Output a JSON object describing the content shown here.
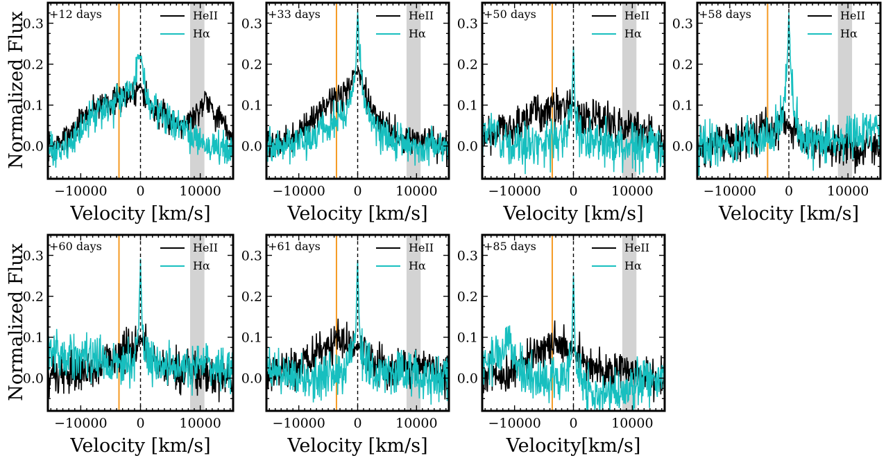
{
  "figure": {
    "ylabel": "Normalized Flux"
  },
  "colors": {
    "heii": "#000000",
    "halpha": "#17bfbf",
    "orange": "#f59a23",
    "band": "#d3d3d3"
  },
  "chart_data": [
    {
      "type": "line",
      "annotation": "+12 days",
      "xlabel": "Velocity [km/s]",
      "xlim": [
        -15500,
        15500
      ],
      "ylim": [
        -0.08,
        0.35
      ],
      "xticks": [
        -10000,
        0,
        10000
      ],
      "yticks": [
        0.0,
        0.1,
        0.2,
        0.3
      ],
      "xtick_labels": [
        "−10000",
        "0",
        "10000"
      ],
      "ytick_labels": [
        "0.0",
        "0.1",
        "0.2",
        "0.3"
      ],
      "vline_orange": -3600,
      "vline_dashed": 0,
      "shaded_band": [
        8300,
        10700
      ],
      "legend_loc": "upper-right",
      "series": [
        {
          "name": "HeII",
          "color": "#000000",
          "x": [
            -15500,
            -14000,
            -12000,
            -10000,
            -8000,
            -6000,
            -4000,
            -2000,
            -1000,
            0,
            1000,
            2000,
            4000,
            6000,
            8000,
            10000,
            11000,
            12000,
            14000,
            15500
          ],
          "y": [
            0.0,
            0.0,
            0.03,
            0.06,
            0.09,
            0.11,
            0.11,
            0.12,
            0.13,
            0.15,
            0.12,
            0.09,
            0.07,
            0.06,
            0.06,
            0.09,
            0.13,
            0.09,
            0.05,
            0.02
          ]
        },
        {
          "name": "Hα",
          "color": "#17bfbf",
          "x": [
            -15500,
            -14000,
            -12000,
            -10000,
            -8000,
            -6000,
            -4000,
            -2000,
            -1000,
            -300,
            0,
            300,
            1000,
            2000,
            4000,
            6000,
            8000,
            10000,
            12000,
            14000,
            15500
          ],
          "y": [
            -0.02,
            -0.01,
            0.0,
            0.04,
            0.07,
            0.09,
            0.1,
            0.13,
            0.15,
            0.22,
            0.23,
            0.2,
            0.13,
            0.09,
            0.08,
            0.05,
            0.03,
            0.01,
            0.0,
            0.0,
            -0.01
          ]
        }
      ]
    },
    {
      "type": "line",
      "annotation": "+33 days",
      "xlabel": "Velocity [km/s]",
      "xlim": [
        -15500,
        15500
      ],
      "ylim": [
        -0.08,
        0.35
      ],
      "xticks": [
        -10000,
        0,
        10000
      ],
      "yticks": [
        0.0,
        0.1,
        0.2,
        0.3
      ],
      "xtick_labels": [
        "−10000",
        "0",
        "10000"
      ],
      "ytick_labels": [
        "0.0",
        "0.1",
        "0.2",
        "0.3"
      ],
      "vline_orange": -3600,
      "vline_dashed": 0,
      "shaded_band": [
        8300,
        10700
      ],
      "legend_loc": "upper-right",
      "series": [
        {
          "name": "HeII",
          "color": "#000000",
          "x": [
            -15500,
            -14000,
            -12000,
            -10000,
            -8000,
            -6000,
            -4000,
            -2000,
            -1000,
            0,
            1000,
            2000,
            4000,
            6000,
            8000,
            10000,
            12000,
            14000,
            15500
          ],
          "y": [
            0.0,
            0.0,
            0.01,
            0.03,
            0.06,
            0.09,
            0.12,
            0.13,
            0.15,
            0.19,
            0.14,
            0.1,
            0.06,
            0.03,
            0.02,
            0.01,
            0.01,
            0.0,
            0.0
          ]
        },
        {
          "name": "Hα",
          "color": "#17bfbf",
          "x": [
            -15500,
            -14000,
            -12000,
            -10000,
            -8000,
            -6000,
            -4000,
            -2000,
            -1000,
            -300,
            0,
            300,
            1000,
            2000,
            4000,
            6000,
            8000,
            10000,
            12000,
            14000,
            15500
          ],
          "y": [
            0.0,
            0.0,
            0.0,
            0.01,
            0.02,
            0.04,
            0.06,
            0.08,
            0.12,
            0.2,
            0.33,
            0.22,
            0.12,
            0.07,
            0.03,
            0.01,
            0.0,
            0.0,
            0.0,
            0.0,
            0.0
          ]
        }
      ]
    },
    {
      "type": "line",
      "annotation": "+50 days",
      "xlabel": "Velocity [km/s]",
      "xlim": [
        -15500,
        15500
      ],
      "ylim": [
        -0.08,
        0.35
      ],
      "xticks": [
        -10000,
        0,
        10000
      ],
      "yticks": [
        0.0,
        0.1,
        0.2,
        0.3
      ],
      "xtick_labels": [
        "−10000",
        "0",
        "10000"
      ],
      "ytick_labels": [
        "0.0",
        "0.1",
        "0.2",
        "0.3"
      ],
      "vline_orange": -3600,
      "vline_dashed": 0,
      "shaded_band": [
        8300,
        10700
      ],
      "legend_loc": "upper-right",
      "series": [
        {
          "name": "HeII",
          "color": "#000000",
          "x": [
            -15500,
            -14000,
            -12000,
            -10000,
            -8000,
            -6000,
            -4000,
            -2000,
            -1000,
            0,
            1000,
            2000,
            4000,
            6000,
            8000,
            10000,
            12000,
            14000,
            15500
          ],
          "y": [
            0.02,
            0.03,
            0.04,
            0.05,
            0.06,
            0.08,
            0.09,
            0.1,
            0.09,
            0.1,
            0.08,
            0.07,
            0.06,
            0.05,
            0.05,
            0.04,
            0.03,
            0.01,
            0.0
          ]
        },
        {
          "name": "Hα",
          "color": "#17bfbf",
          "x": [
            -15500,
            -14000,
            -12000,
            -10000,
            -8000,
            -6000,
            -4000,
            -2000,
            -1000,
            -300,
            0,
            300,
            1000,
            2000,
            4000,
            6000,
            8000,
            10000,
            12000,
            14000,
            15500
          ],
          "y": [
            0.03,
            0.04,
            0.02,
            0.01,
            0.0,
            0.0,
            0.01,
            0.02,
            0.04,
            0.08,
            0.25,
            0.08,
            0.04,
            0.02,
            0.01,
            0.0,
            0.0,
            0.0,
            0.0,
            0.01,
            0.0
          ]
        }
      ]
    },
    {
      "type": "line",
      "annotation": "+58 days",
      "xlabel": "Velocity [km/s]",
      "xlim": [
        -15500,
        15500
      ],
      "ylim": [
        -0.08,
        0.35
      ],
      "xticks": [
        -10000,
        0,
        10000
      ],
      "yticks": [
        0.0,
        0.1,
        0.2,
        0.3
      ],
      "xtick_labels": [
        "−10000",
        "0",
        "10000"
      ],
      "ytick_labels": [
        "0.0",
        "0.1",
        "0.2",
        "0.3"
      ],
      "vline_orange": -3600,
      "vline_dashed": 0,
      "shaded_band": [
        8300,
        10700
      ],
      "legend_loc": "upper-right",
      "series": [
        {
          "name": "HeII",
          "color": "#000000",
          "x": [
            -15500,
            -14000,
            -12000,
            -10000,
            -8000,
            -6000,
            -4000,
            -2000,
            -1000,
            0,
            1000,
            2000,
            4000,
            6000,
            8000,
            10000,
            12000,
            14000,
            15500
          ],
          "y": [
            0.0,
            0.0,
            0.0,
            0.01,
            0.02,
            0.03,
            0.04,
            0.05,
            0.06,
            0.05,
            0.03,
            0.02,
            0.01,
            0.01,
            0.0,
            0.0,
            -0.01,
            0.0,
            0.0
          ]
        },
        {
          "name": "Hα",
          "color": "#17bfbf",
          "x": [
            -15500,
            -14000,
            -12000,
            -10000,
            -8000,
            -6000,
            -4000,
            -2000,
            -1000,
            -300,
            0,
            300,
            1000,
            2000,
            4000,
            6000,
            8000,
            10000,
            12000,
            14000,
            15500
          ],
          "y": [
            0.0,
            0.0,
            0.0,
            0.0,
            0.01,
            0.02,
            0.02,
            0.04,
            0.08,
            0.2,
            0.32,
            0.2,
            0.06,
            0.02,
            0.01,
            0.01,
            0.02,
            0.02,
            0.03,
            0.04,
            0.05
          ]
        }
      ]
    },
    {
      "type": "line",
      "annotation": "+60 days",
      "xlabel": "Velocity [km/s]",
      "xlim": [
        -15500,
        15500
      ],
      "ylim": [
        -0.08,
        0.35
      ],
      "xticks": [
        -10000,
        0,
        10000
      ],
      "yticks": [
        0.0,
        0.1,
        0.2,
        0.3
      ],
      "xtick_labels": [
        "−10000",
        "0",
        "10000"
      ],
      "ytick_labels": [
        "0.0",
        "0.1",
        "0.2",
        "0.3"
      ],
      "vline_orange": -3600,
      "vline_dashed": 0,
      "shaded_band": [
        8300,
        10700
      ],
      "legend_loc": "upper-right",
      "series": [
        {
          "name": "HeII",
          "color": "#000000",
          "x": [
            -15500,
            -14000,
            -12000,
            -10000,
            -8000,
            -6000,
            -4000,
            -2000,
            -1000,
            0,
            1000,
            2000,
            4000,
            6000,
            8000,
            10000,
            12000,
            14000,
            15500
          ],
          "y": [
            0.0,
            0.0,
            0.01,
            0.01,
            0.02,
            0.04,
            0.06,
            0.07,
            0.08,
            0.09,
            0.07,
            0.05,
            0.03,
            0.02,
            0.02,
            0.02,
            0.01,
            0.0,
            0.0
          ]
        },
        {
          "name": "Hα",
          "color": "#17bfbf",
          "x": [
            -15500,
            -14000,
            -12000,
            -10000,
            -8000,
            -6000,
            -4000,
            -2000,
            -1000,
            -300,
            0,
            300,
            1000,
            2000,
            4000,
            6000,
            8000,
            10000,
            12000,
            14000,
            15500
          ],
          "y": [
            0.07,
            0.06,
            0.06,
            0.05,
            0.05,
            0.04,
            0.04,
            0.04,
            0.05,
            0.13,
            0.29,
            0.12,
            0.05,
            0.04,
            0.03,
            0.03,
            0.03,
            0.03,
            0.03,
            0.03,
            0.02
          ]
        }
      ]
    },
    {
      "type": "line",
      "annotation": "+61 days",
      "xlabel": "Velocity [km/s]",
      "xlim": [
        -15500,
        15500
      ],
      "ylim": [
        -0.08,
        0.35
      ],
      "xticks": [
        -10000,
        0,
        10000
      ],
      "yticks": [
        0.0,
        0.1,
        0.2,
        0.3
      ],
      "xtick_labels": [
        "−10000",
        "0",
        "10000"
      ],
      "ytick_labels": [
        "0.0",
        "0.1",
        "0.2",
        "0.3"
      ],
      "vline_orange": -3600,
      "vline_dashed": 0,
      "shaded_band": [
        8300,
        10700
      ],
      "legend_loc": "upper-right",
      "series": [
        {
          "name": "HeII",
          "color": "#000000",
          "x": [
            -15500,
            -14000,
            -12000,
            -10000,
            -8000,
            -6000,
            -4000,
            -2000,
            -1000,
            0,
            1000,
            2000,
            4000,
            6000,
            8000,
            10000,
            12000,
            14000,
            15500
          ],
          "y": [
            0.01,
            0.01,
            0.02,
            0.03,
            0.05,
            0.07,
            0.09,
            0.09,
            0.08,
            0.08,
            0.06,
            0.05,
            0.03,
            0.02,
            0.02,
            0.02,
            0.02,
            0.01,
            0.0
          ]
        },
        {
          "name": "Hα",
          "color": "#17bfbf",
          "x": [
            -15500,
            -14000,
            -12000,
            -10000,
            -8000,
            -6000,
            -4000,
            -2000,
            -1000,
            -300,
            0,
            300,
            1000,
            2000,
            4000,
            6000,
            8000,
            10000,
            12000,
            14000,
            15500
          ],
          "y": [
            0.02,
            0.01,
            0.01,
            0.0,
            0.0,
            0.0,
            0.01,
            0.02,
            0.05,
            0.13,
            0.29,
            0.12,
            0.04,
            0.02,
            0.01,
            0.01,
            0.01,
            0.01,
            0.0,
            0.0,
            0.01
          ]
        }
      ]
    },
    {
      "type": "line",
      "annotation": "+85 days",
      "xlabel": "Velocity[km/s]",
      "xlim": [
        -15500,
        15500
      ],
      "ylim": [
        -0.08,
        0.35
      ],
      "xticks": [
        -10000,
        0,
        10000
      ],
      "yticks": [
        0.0,
        0.1,
        0.2,
        0.3
      ],
      "xtick_labels": [
        "−10000",
        "0",
        "10000"
      ],
      "ytick_labels": [
        "0.0",
        "0.1",
        "0.2",
        "0.3"
      ],
      "vline_orange": -3600,
      "vline_dashed": 0,
      "shaded_band": [
        8300,
        10700
      ],
      "legend_loc": "upper-right",
      "series": [
        {
          "name": "HeII",
          "color": "#000000",
          "x": [
            -15500,
            -14000,
            -12000,
            -10000,
            -8000,
            -6000,
            -4000,
            -2000,
            -1000,
            0,
            1000,
            2000,
            4000,
            6000,
            8000,
            10000,
            12000,
            14000,
            15500
          ],
          "y": [
            0.01,
            0.01,
            0.01,
            0.02,
            0.04,
            0.06,
            0.08,
            0.09,
            0.08,
            0.07,
            0.05,
            0.04,
            0.03,
            0.02,
            0.02,
            0.02,
            0.01,
            0.0,
            0.0
          ]
        },
        {
          "name": "Hα",
          "color": "#17bfbf",
          "x": [
            -15500,
            -14000,
            -12000,
            -11000,
            -10000,
            -8000,
            -6000,
            -4000,
            -2000,
            -1000,
            -300,
            0,
            300,
            1000,
            2000,
            4000,
            6000,
            8000,
            10000,
            12000,
            14000,
            15500
          ],
          "y": [
            0.03,
            0.04,
            0.06,
            0.1,
            0.04,
            0.01,
            -0.01,
            0.0,
            0.0,
            0.01,
            0.06,
            0.26,
            0.06,
            0.0,
            -0.03,
            -0.04,
            -0.04,
            -0.03,
            -0.02,
            -0.01,
            0.0,
            0.0
          ]
        }
      ]
    }
  ]
}
